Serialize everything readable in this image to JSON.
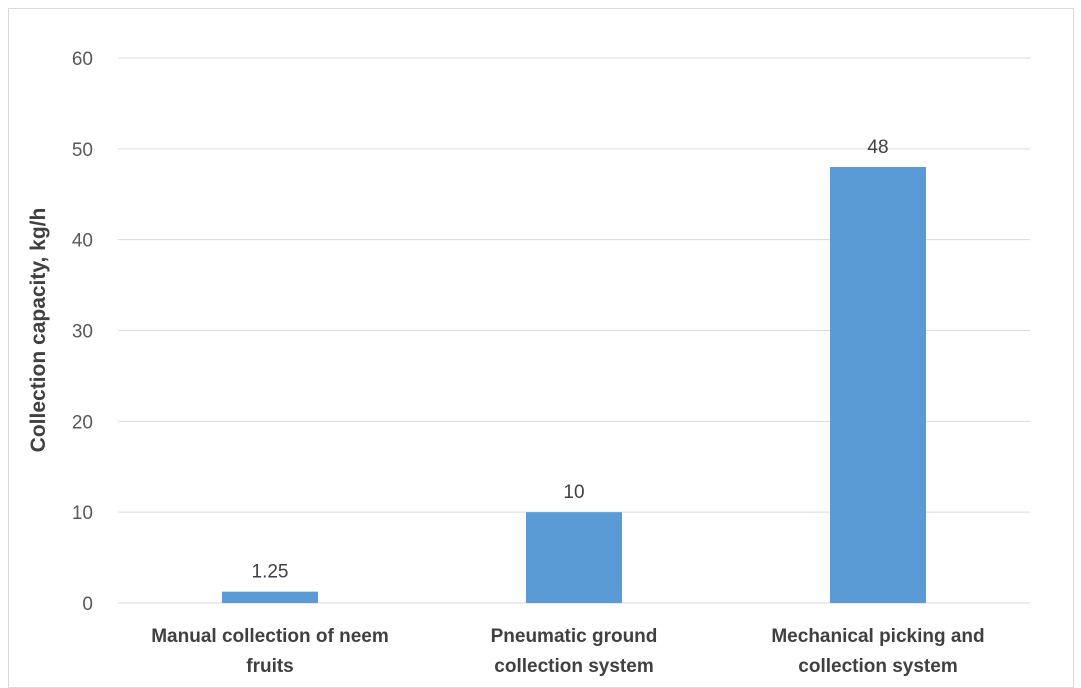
{
  "chart_data": {
    "type": "bar",
    "title": "",
    "xlabel": "",
    "ylabel": "Collection capacity, kg/h",
    "categories": [
      [
        "Manual collection of neem",
        "fruits"
      ],
      [
        "Pneumatic ground",
        "collection system"
      ],
      [
        "Mechanical picking and",
        "collection system"
      ]
    ],
    "values": [
      1.25,
      10,
      48
    ],
    "data_labels": [
      "1.25",
      "10",
      "48"
    ],
    "ylim": [
      0,
      60
    ],
    "yticks": [
      0,
      10,
      20,
      30,
      40,
      50,
      60
    ],
    "grid": true,
    "legend": "none",
    "bar_color": "#5b9bd5",
    "grid_color": "#d9d9d9"
  }
}
